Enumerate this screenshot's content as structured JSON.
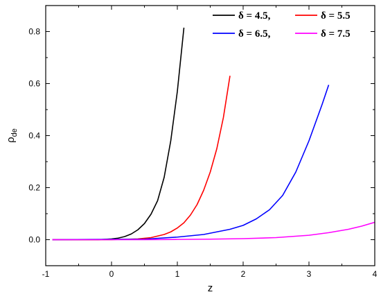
{
  "chart_data": {
    "type": "line",
    "xlabel": "z",
    "ylabel_main": "ρ",
    "ylabel_sub": "de",
    "xlim": [
      -1,
      4
    ],
    "ylim": [
      -0.1,
      0.9
    ],
    "x_ticks": [
      -1,
      0,
      1,
      2,
      3,
      4
    ],
    "x_tick_labels": [
      "-1",
      "0",
      "1",
      "2",
      "3",
      "4"
    ],
    "y_ticks": [
      0.0,
      0.2,
      0.4,
      0.6,
      0.8
    ],
    "y_tick_labels": [
      "0.0",
      "0.2",
      "0.4",
      "0.6",
      "0.8"
    ],
    "grid": false,
    "legend_position": "top-right",
    "series": [
      {
        "name": "δ = 4.5,",
        "color": "#000000",
        "x": [
          -0.9,
          -0.5,
          -0.2,
          0.0,
          0.1,
          0.2,
          0.3,
          0.4,
          0.5,
          0.6,
          0.7,
          0.8,
          0.9,
          1.0,
          1.1
        ],
        "y": [
          0.0,
          0.0,
          0.0,
          0.003,
          0.006,
          0.012,
          0.022,
          0.038,
          0.062,
          0.098,
          0.15,
          0.24,
          0.38,
          0.57,
          0.815
        ]
      },
      {
        "name": "δ = 5.5",
        "color": "#ff0000",
        "x": [
          -0.9,
          0.0,
          0.4,
          0.6,
          0.8,
          0.9,
          1.0,
          1.1,
          1.2,
          1.3,
          1.4,
          1.5,
          1.6,
          1.7,
          1.8
        ],
        "y": [
          0.0,
          0.0,
          0.003,
          0.008,
          0.02,
          0.03,
          0.045,
          0.065,
          0.095,
          0.135,
          0.19,
          0.26,
          0.35,
          0.47,
          0.63
        ]
      },
      {
        "name": "δ = 6.5,",
        "color": "#0000ff",
        "x": [
          -0.9,
          0.5,
          1.0,
          1.4,
          1.8,
          2.0,
          2.2,
          2.4,
          2.6,
          2.8,
          2.9,
          3.0,
          3.1,
          3.2,
          3.3
        ],
        "y": [
          0.0,
          0.002,
          0.01,
          0.02,
          0.04,
          0.055,
          0.08,
          0.115,
          0.17,
          0.26,
          0.32,
          0.38,
          0.45,
          0.52,
          0.595
        ]
      },
      {
        "name": "δ = 7.5",
        "color": "#ff00ff",
        "x": [
          -0.9,
          0.5,
          1.0,
          1.5,
          2.0,
          2.5,
          3.0,
          3.3,
          3.6,
          3.8,
          4.0
        ],
        "y": [
          0.0,
          0.0,
          0.001,
          0.002,
          0.004,
          0.008,
          0.017,
          0.027,
          0.04,
          0.052,
          0.067
        ]
      }
    ]
  }
}
